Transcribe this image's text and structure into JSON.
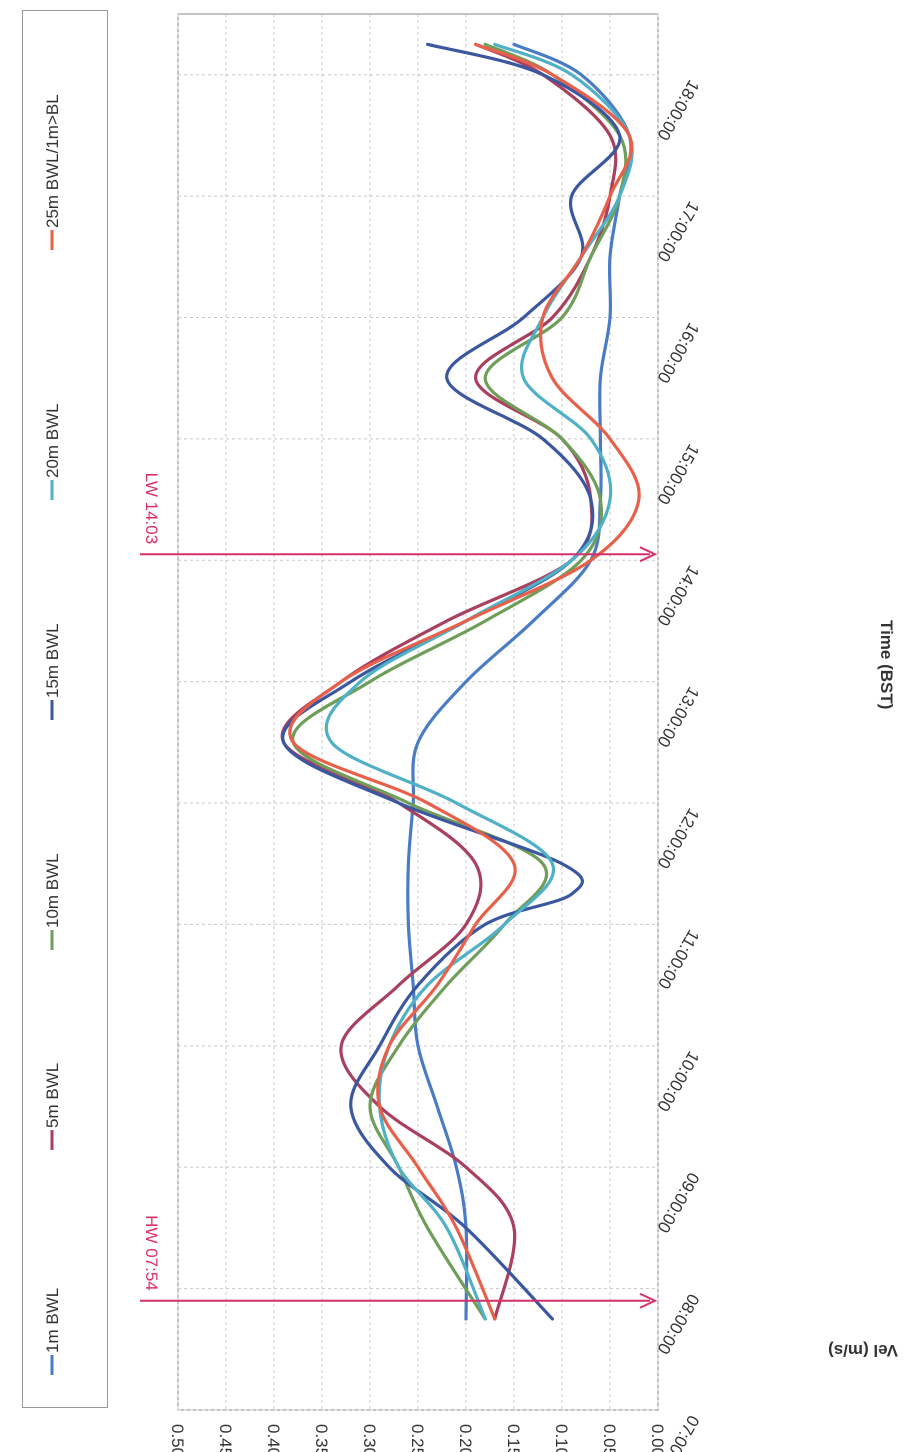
{
  "chart_data": {
    "type": "line",
    "title": "",
    "xlabel": "Time (BST)",
    "ylabel": "Vel (m/s)",
    "x_ticks": [
      "07:00:00",
      "08:00:00",
      "09:00:00",
      "10:00:00",
      "11:00:00",
      "12:00:00",
      "13:00:00",
      "14:00:00",
      "15:00:00",
      "16:00:00",
      "17:00:00",
      "18:00:00"
    ],
    "xlim": [
      "07:00:00",
      "18:30:00"
    ],
    "y_ticks": [
      "0.00",
      "0.05",
      "0.10",
      "0.15",
      "0.20",
      "0.25",
      "0.30",
      "0.35",
      "0.40",
      "0.45",
      "0.50"
    ],
    "ylim": [
      0,
      0.5
    ],
    "grid": true,
    "legend_position": "top",
    "annotations": [
      {
        "label": "HW 07:54",
        "time": "07:54",
        "color": "#d6306b"
      },
      {
        "label": "LW 14:03",
        "time": "14:03",
        "color": "#d6306b"
      }
    ],
    "series": [
      {
        "name": "1m BWL",
        "color": "#4a7cc6",
        "x": [
          "07:45",
          "08:30",
          "09:00",
          "09:30",
          "10:00",
          "10:30",
          "11:00",
          "11:30",
          "12:00",
          "12:30",
          "13:00",
          "13:30",
          "14:00",
          "14:30",
          "15:00",
          "15:30",
          "16:00",
          "16:30",
          "17:00",
          "17:30",
          "18:00",
          "18:15"
        ],
        "y": [
          0.2,
          0.2,
          0.21,
          0.23,
          0.25,
          0.255,
          0.26,
          0.26,
          0.255,
          0.25,
          0.2,
          0.13,
          0.07,
          0.06,
          0.06,
          0.06,
          0.05,
          0.05,
          0.04,
          0.03,
          0.08,
          0.15
        ]
      },
      {
        "name": "5m BWL",
        "color": "#a8405e",
        "x": [
          "07:45",
          "08:30",
          "09:00",
          "09:30",
          "10:00",
          "10:30",
          "11:00",
          "11:30",
          "12:00",
          "12:30",
          "13:00",
          "13:30",
          "14:00",
          "14:30",
          "15:00",
          "15:30",
          "16:00",
          "16:30",
          "17:00",
          "17:30",
          "18:00",
          "18:15"
        ],
        "y": [
          0.17,
          0.15,
          0.2,
          0.29,
          0.33,
          0.27,
          0.2,
          0.19,
          0.27,
          0.39,
          0.33,
          0.22,
          0.09,
          0.07,
          0.1,
          0.19,
          0.11,
          0.07,
          0.05,
          0.05,
          0.12,
          0.19
        ]
      },
      {
        "name": "10m BWL",
        "color": "#6f9e5a",
        "x": [
          "07:45",
          "08:30",
          "09:00",
          "09:30",
          "10:00",
          "10:30",
          "11:00",
          "11:30",
          "12:00",
          "12:30",
          "13:00",
          "13:30",
          "14:00",
          "14:30",
          "15:00",
          "15:30",
          "16:00",
          "16:30",
          "17:00",
          "17:30",
          "18:00",
          "18:15"
        ],
        "y": [
          0.18,
          0.24,
          0.27,
          0.3,
          0.27,
          0.22,
          0.16,
          0.12,
          0.26,
          0.38,
          0.3,
          0.18,
          0.08,
          0.06,
          0.1,
          0.18,
          0.1,
          0.07,
          0.04,
          0.04,
          0.11,
          0.18
        ]
      },
      {
        "name": "15m BWL",
        "color": "#3b57a0",
        "x": [
          "07:45",
          "08:30",
          "09:00",
          "09:30",
          "10:00",
          "10:30",
          "11:00",
          "11:15",
          "11:30",
          "12:00",
          "12:30",
          "13:00",
          "13:30",
          "14:00",
          "14:30",
          "15:00",
          "15:30",
          "16:00",
          "16:30",
          "17:00",
          "17:30",
          "18:00",
          "18:15"
        ],
        "y": [
          0.11,
          0.2,
          0.28,
          0.32,
          0.29,
          0.25,
          0.18,
          0.09,
          0.1,
          0.27,
          0.39,
          0.32,
          0.2,
          0.09,
          0.07,
          0.12,
          0.22,
          0.14,
          0.08,
          0.09,
          0.04,
          0.12,
          0.24
        ]
      },
      {
        "name": "20m BWL",
        "color": "#4fb0c6",
        "x": [
          "07:45",
          "08:30",
          "09:00",
          "09:30",
          "10:00",
          "10:30",
          "11:00",
          "11:30",
          "12:00",
          "12:30",
          "13:00",
          "13:30",
          "14:00",
          "14:30",
          "15:00",
          "15:30",
          "16:00",
          "16:30",
          "17:00",
          "17:30",
          "18:00",
          "18:15"
        ],
        "y": [
          0.18,
          0.22,
          0.27,
          0.29,
          0.28,
          0.24,
          0.16,
          0.11,
          0.21,
          0.34,
          0.31,
          0.2,
          0.09,
          0.05,
          0.07,
          0.14,
          0.12,
          0.08,
          0.04,
          0.03,
          0.09,
          0.17
        ]
      },
      {
        "name": "25m BWL/1m>BL",
        "color": "#e8604a",
        "x": [
          "07:45",
          "08:30",
          "09:00",
          "09:30",
          "10:00",
          "10:30",
          "11:00",
          "11:30",
          "12:00",
          "12:30",
          "13:00",
          "13:30",
          "14:00",
          "14:30",
          "15:00",
          "15:30",
          "16:00",
          "16:30",
          "17:00",
          "17:30",
          "18:00",
          "18:15"
        ],
        "y": [
          0.17,
          0.21,
          0.25,
          0.29,
          0.28,
          0.23,
          0.19,
          0.15,
          0.24,
          0.38,
          0.33,
          0.2,
          0.07,
          0.02,
          0.05,
          0.11,
          0.12,
          0.08,
          0.05,
          0.03,
          0.11,
          0.19
        ]
      }
    ]
  }
}
